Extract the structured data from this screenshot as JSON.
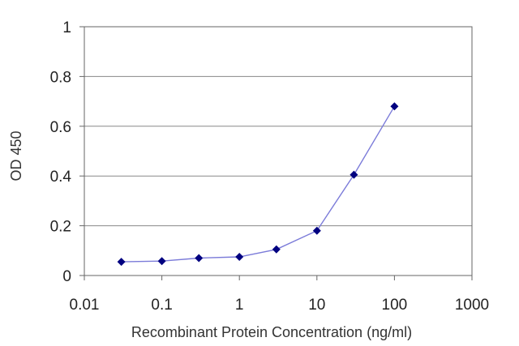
{
  "chart_data": {
    "type": "line",
    "title": "",
    "xlabel": "Recombinant Protein Concentration (ng/ml)",
    "ylabel": "OD 450",
    "xscale": "log",
    "xlim": [
      0.01,
      1000
    ],
    "ylim": [
      0,
      1
    ],
    "xticks": [
      0.01,
      0.1,
      1,
      10,
      100,
      1000
    ],
    "xtick_labels": [
      "0.01",
      "0.1",
      "1",
      "10",
      "100",
      "1000"
    ],
    "yticks": [
      0,
      0.2,
      0.4,
      0.6,
      0.8,
      1
    ],
    "ytick_labels": [
      "0",
      "0.2",
      "0.4",
      "0.6",
      "0.8",
      "1"
    ],
    "grid": "horizontal",
    "legend": "none",
    "series": [
      {
        "x": [
          0.03,
          0.1,
          0.3,
          1,
          3,
          10,
          30,
          100
        ],
        "y": [
          0.055,
          0.058,
          0.07,
          0.075,
          0.105,
          0.18,
          0.405,
          0.68
        ]
      }
    ],
    "colors": {
      "line": "#7b7bd9",
      "marker": "#000080",
      "grid": "#888888",
      "axis": "#666666"
    }
  }
}
